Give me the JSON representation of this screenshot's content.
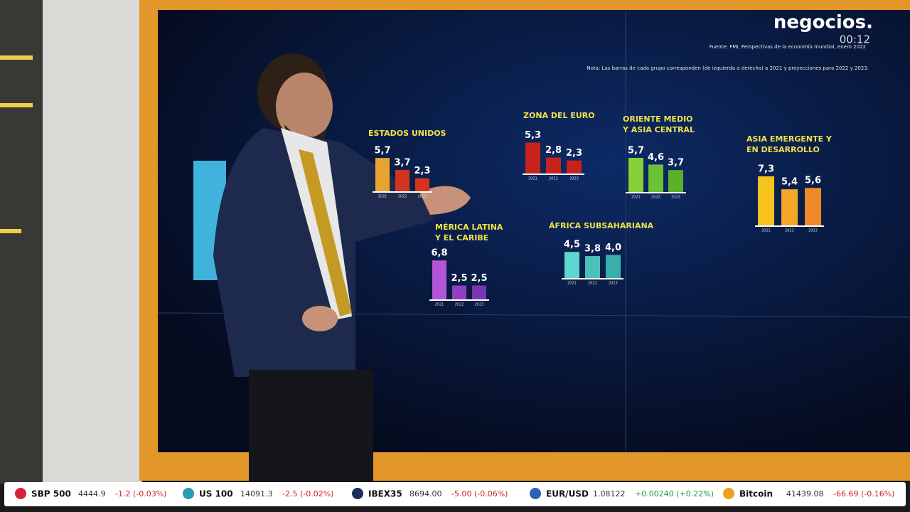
{
  "chart_data": [
    {
      "type": "bar",
      "title": [
        "ESTADOS UNIDOS"
      ],
      "categories": [
        "2021",
        "2022",
        "2023"
      ],
      "values": [
        5.7,
        3.7,
        2.3
      ],
      "value_labels": [
        "5,7",
        "3,7",
        "2,3"
      ],
      "colors": [
        "#e9a331",
        "#d2341f",
        "#d2341f"
      ]
    },
    {
      "type": "bar",
      "title": [
        "ZONA DEL EURO"
      ],
      "categories": [
        "2021",
        "2022",
        "2023"
      ],
      "values": [
        5.3,
        2.8,
        2.3
      ],
      "value_labels": [
        "5,3",
        "2,8",
        "2,3"
      ],
      "colors": [
        "#c8221c",
        "#c8221c",
        "#c8221c"
      ]
    },
    {
      "type": "bar",
      "title": [
        "ORIENTE MEDIO",
        "Y ASIA CENTRAL"
      ],
      "categories": [
        "2021",
        "2022",
        "2023"
      ],
      "values": [
        5.7,
        4.6,
        3.7
      ],
      "value_labels": [
        "5,7",
        "4,6",
        "3,7"
      ],
      "colors": [
        "#86d13a",
        "#6cc232",
        "#5db02c"
      ]
    },
    {
      "type": "bar",
      "title": [
        "ASIA EMERGENTE Y",
        "EN DESARROLLO"
      ],
      "categories": [
        "2021",
        "2022",
        "2023"
      ],
      "values": [
        7.3,
        5.4,
        5.6
      ],
      "value_labels": [
        "7,3",
        "5,4",
        "5,6"
      ],
      "colors": [
        "#f5c21e",
        "#f3a628",
        "#ef8a2a"
      ]
    },
    {
      "type": "bar",
      "title": [
        "MÉRICA LATINA",
        "Y EL CARIBE"
      ],
      "categories": [
        "2021",
        "2022",
        "2023"
      ],
      "values": [
        6.8,
        2.5,
        2.5
      ],
      "value_labels": [
        "6,8",
        "2,5",
        "2,5"
      ],
      "colors": [
        "#b255d6",
        "#8f3fc4",
        "#7a36b0"
      ]
    },
    {
      "type": "bar",
      "title": [
        "ÁFRICA SUBSAHARIANA"
      ],
      "categories": [
        "2021",
        "2022",
        "2023"
      ],
      "values": [
        4.5,
        3.8,
        4.0
      ],
      "value_labels": [
        "4,5",
        "3,8",
        "4,0"
      ],
      "colors": [
        "#5fd6cf",
        "#4cc1b9",
        "#3aaea8"
      ]
    }
  ],
  "screen": {
    "source": "Fuente: FMI, Perspectivas de la economía mundial, enero 2022",
    "note": "Nota: Las barras de cada grupo corresponden (de izquierda a derecha) a 2021 y proyecciones para 2022 y 2023."
  },
  "header": {
    "logo": "negocios.",
    "time": "00:12"
  },
  "ticker": [
    {
      "name": "SBP 500",
      "price": "4444.9",
      "change": "-1.2 (-0.03%)"
    },
    {
      "name": "US 100",
      "price": "14091.3",
      "change": "-2.5 (-0.02%)"
    },
    {
      "name": "IBEX35",
      "price": "8694.00",
      "change": "-5.00 (-0.06%)"
    },
    {
      "name": "EUR/USD",
      "price": "1.08122",
      "change": "+0.00240 (+0.22%)"
    },
    {
      "name": "Bitcoin",
      "price": "41439.08",
      "change": "-66.69 (-0.16%)"
    }
  ]
}
